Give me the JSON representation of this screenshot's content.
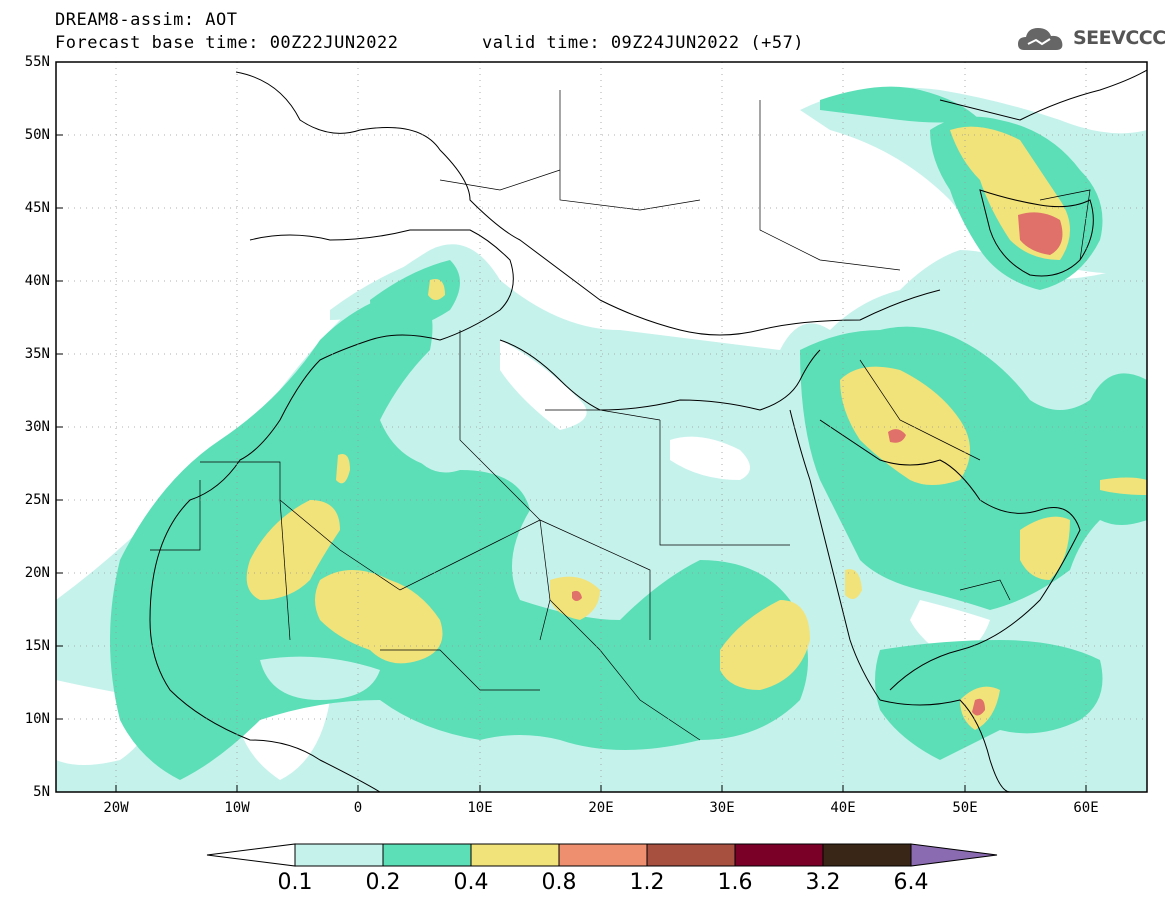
{
  "header": {
    "title": "DREAM8-assim: AOT",
    "forecast_base": "Forecast base time: 00Z22JUN2022",
    "valid_time": "valid time: 09Z24JUN2022 (+57)"
  },
  "logo": {
    "text": "SEEVCCC",
    "icon": "cloud-icon"
  },
  "axes": {
    "lat_labels": [
      "55N",
      "50N",
      "45N",
      "40N",
      "35N",
      "30N",
      "25N",
      "20N",
      "15N",
      "10N",
      "5N"
    ],
    "lon_labels": [
      "20W",
      "10W",
      "0",
      "10E",
      "20E",
      "30E",
      "40E",
      "50E",
      "60E"
    ]
  },
  "colorbar": {
    "labels": [
      "0.1",
      "0.2",
      "0.4",
      "0.8",
      "1.2",
      "1.6",
      "3.2",
      "6.4"
    ],
    "colors": [
      "#ffffff",
      "#c6f2ec",
      "#5cdfb7",
      "#f2e27a",
      "#ee9070",
      "#a85040",
      "#7a0028",
      "#3a2616",
      "#8a6ab0"
    ]
  },
  "colors": {
    "low": "#c6f2ec",
    "moderate": "#5cdfb7",
    "high": "#f2e27a",
    "very_high": "#ee9070",
    "extreme": "#e0706a"
  }
}
